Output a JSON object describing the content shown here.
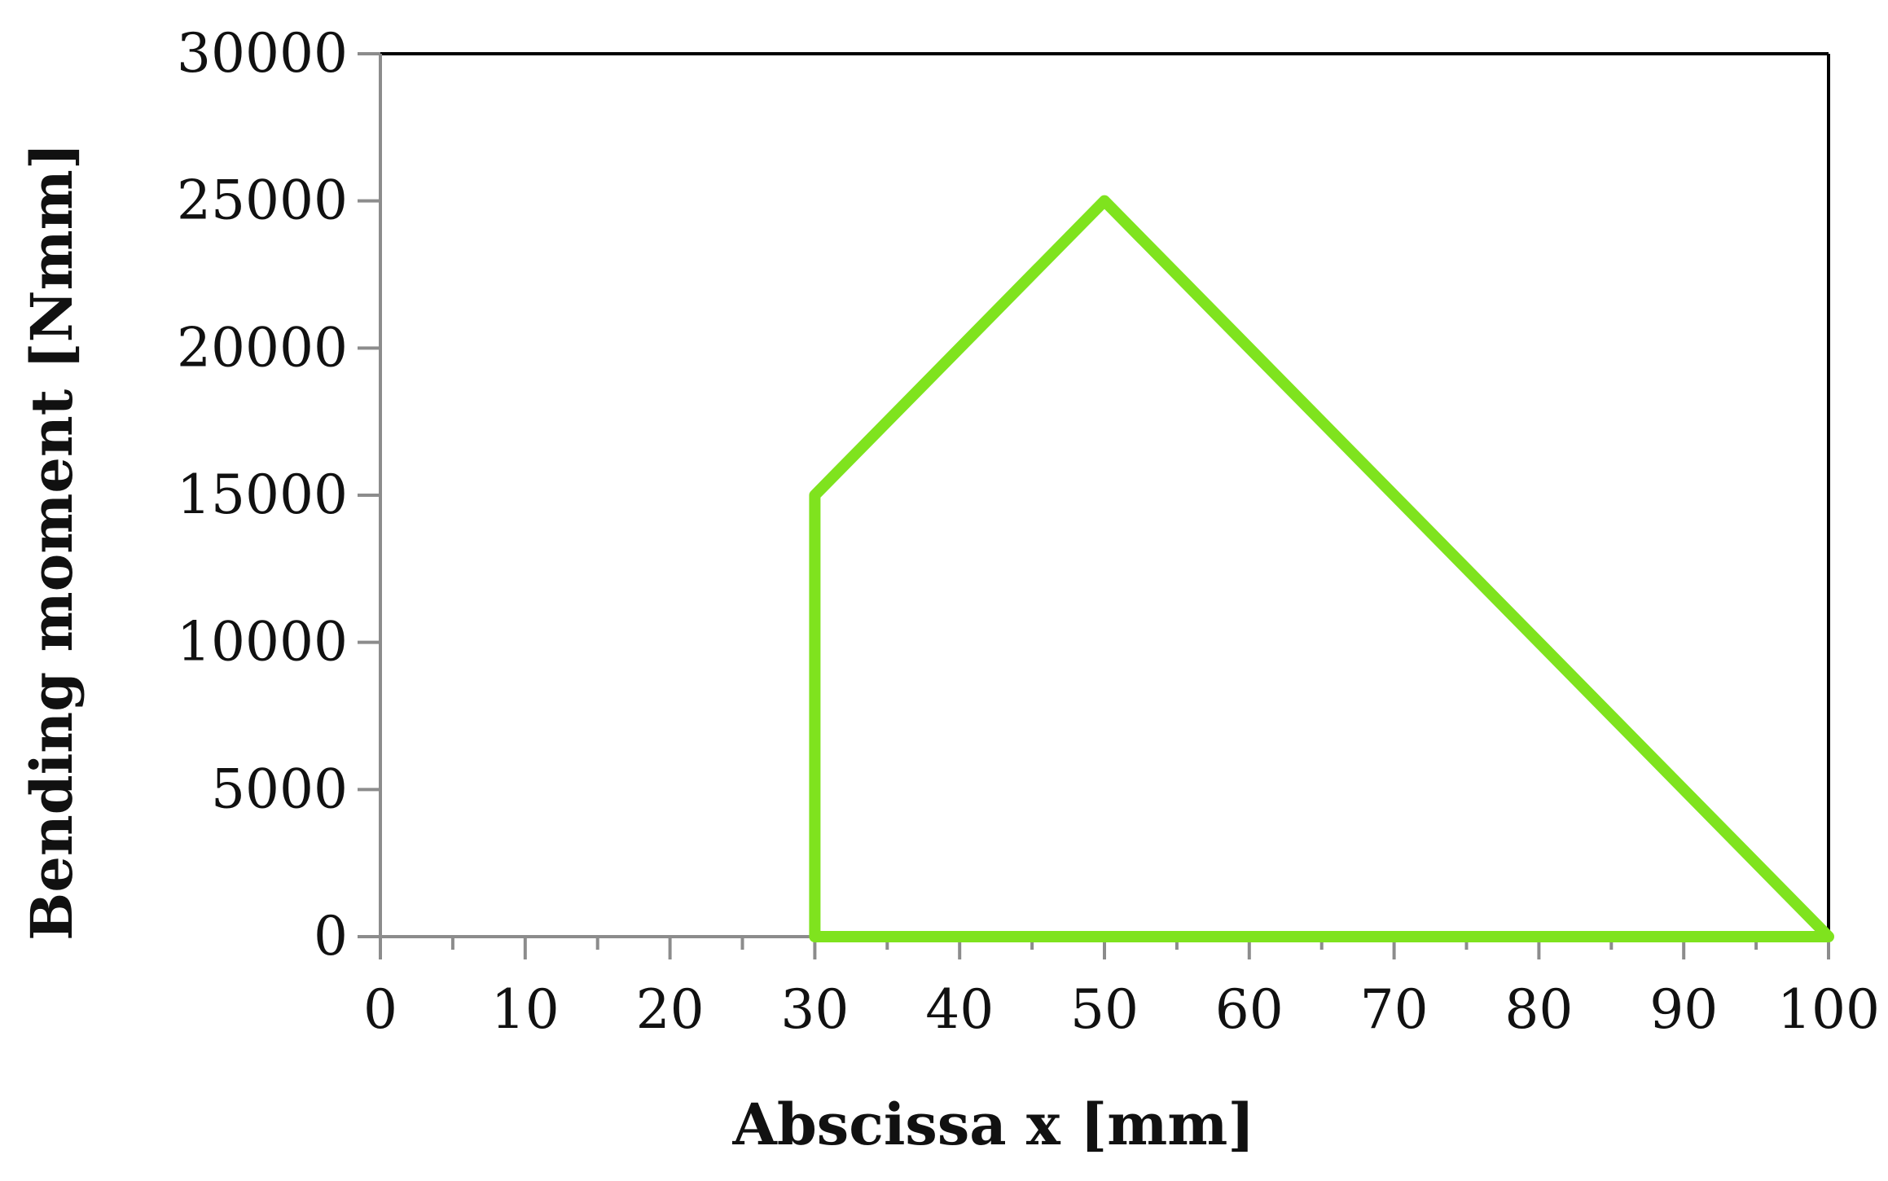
{
  "chart_data": {
    "type": "line",
    "title": "",
    "xlabel": "Abscissa x [mm]",
    "ylabel": "Bending moment [Nmm]",
    "xlim": [
      0,
      100
    ],
    "ylim": [
      0,
      30000
    ],
    "x_ticks": [
      0,
      10,
      20,
      30,
      40,
      50,
      60,
      70,
      80,
      90,
      100
    ],
    "x_tick_labels": [
      "0",
      "10",
      "20",
      "30",
      "40",
      "50",
      "60",
      "70",
      "80",
      "90",
      "100"
    ],
    "y_ticks": [
      0,
      5000,
      10000,
      15000,
      20000,
      25000,
      30000
    ],
    "y_tick_labels": [
      "0",
      "5000",
      "10000",
      "15000",
      "20000",
      "25000",
      "30000"
    ],
    "grid": false,
    "legend": "none",
    "series": [
      {
        "x": [
          30,
          30,
          50,
          100,
          30
        ],
        "y": [
          0,
          15000,
          25000,
          0,
          0
        ],
        "color": "#7FE31E"
      }
    ]
  }
}
